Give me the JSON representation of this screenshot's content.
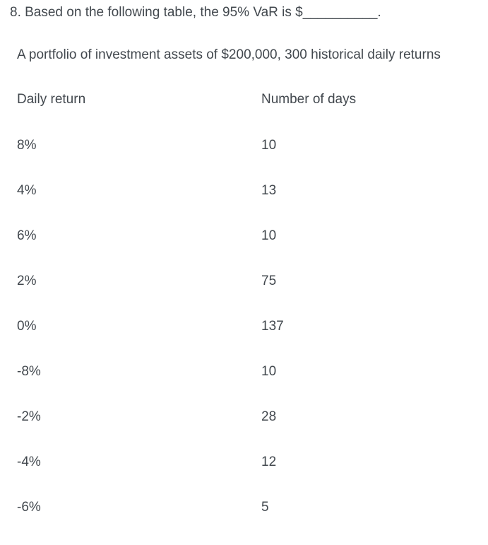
{
  "question": {
    "text": "8. Based on the following table, the 95% VaR is $__________.",
    "description": "A portfolio of investment assets of $200,000, 300 historical daily returns"
  },
  "table": {
    "headers": [
      "Daily return",
      "Number of days"
    ],
    "rows": [
      {
        "daily_return": "8%",
        "number_of_days": "10"
      },
      {
        "daily_return": "4%",
        "number_of_days": "13"
      },
      {
        "daily_return": "6%",
        "number_of_days": "10"
      },
      {
        "daily_return": "2%",
        "number_of_days": "75"
      },
      {
        "daily_return": "0%",
        "number_of_days": "137"
      },
      {
        "daily_return": "-8%",
        "number_of_days": "10"
      },
      {
        "daily_return": "-2%",
        "number_of_days": "28"
      },
      {
        "daily_return": "-4%",
        "number_of_days": "12"
      },
      {
        "daily_return": "-6%",
        "number_of_days": "5"
      }
    ]
  },
  "colors": {
    "text": "#42484e",
    "background": "#ffffff"
  }
}
